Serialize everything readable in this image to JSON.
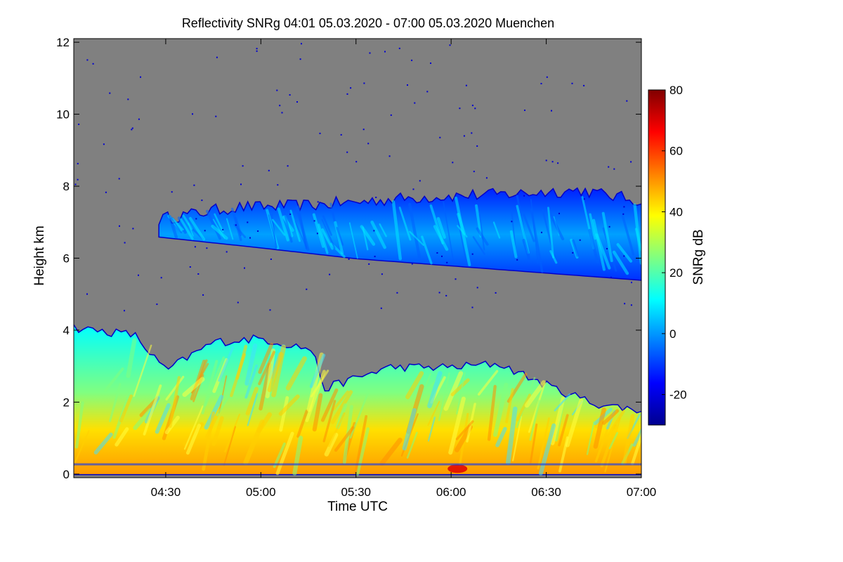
{
  "chart_data": {
    "type": "heatmap",
    "title": "Reflectivity SNRg   04:01 05.03.2020 - 07:00 05.03.2020 Muenchen",
    "xlabel": "Time UTC",
    "ylabel": "Height km",
    "x_range_minutes_utc": [
      241,
      420
    ],
    "xticks": [
      {
        "label": "04:30",
        "minutes": 270
      },
      {
        "label": "05:00",
        "minutes": 300
      },
      {
        "label": "05:30",
        "minutes": 330
      },
      {
        "label": "06:00",
        "minutes": 360
      },
      {
        "label": "06:30",
        "minutes": 390
      },
      {
        "label": "07:00",
        "minutes": 420
      }
    ],
    "ylim": [
      -0.1,
      12.1
    ],
    "yticks": [
      0,
      2,
      4,
      6,
      8,
      10,
      12
    ],
    "background_color": "#808080",
    "colorbar": {
      "label": "SNRg dB",
      "range": [
        -30,
        80
      ],
      "ticks": [
        -20,
        0,
        20,
        40,
        60,
        80
      ],
      "colormap": [
        "#00008f",
        "#0000ff",
        "#0080ff",
        "#00ffff",
        "#80ff80",
        "#ffff00",
        "#ff8000",
        "#ff0000",
        "#800000"
      ]
    },
    "layers": [
      {
        "name": "upper cloud layer",
        "time_min": [
          268,
          420
        ],
        "top_km": [
          [
            268,
            7.0
          ],
          [
            290,
            7.3
          ],
          [
            320,
            7.4
          ],
          [
            350,
            7.6
          ],
          [
            380,
            7.7
          ],
          [
            400,
            7.8
          ],
          [
            420,
            7.5
          ]
        ],
        "base_km": [
          [
            268,
            6.6
          ],
          [
            300,
            6.3
          ],
          [
            330,
            6.0
          ],
          [
            360,
            5.8
          ],
          [
            390,
            5.6
          ],
          [
            420,
            5.4
          ]
        ],
        "typical_snr_db": [
          -20,
          10
        ]
      },
      {
        "name": "lower precipitation layer",
        "time_min": [
          241,
          420
        ],
        "top_km": [
          [
            241,
            4.0
          ],
          [
            260,
            3.8
          ],
          [
            270,
            2.8
          ],
          [
            285,
            3.6
          ],
          [
            300,
            3.7
          ],
          [
            316,
            3.4
          ],
          [
            320,
            2.3
          ],
          [
            340,
            2.9
          ],
          [
            360,
            2.9
          ],
          [
            375,
            3.0
          ],
          [
            390,
            2.4
          ],
          [
            405,
            1.9
          ],
          [
            420,
            1.7
          ]
        ],
        "base_km": [
          [
            241,
            0.0
          ],
          [
            420,
            0.0
          ]
        ],
        "typical_snr_db": [
          0,
          50
        ],
        "max_snr_db": 70
      }
    ]
  }
}
